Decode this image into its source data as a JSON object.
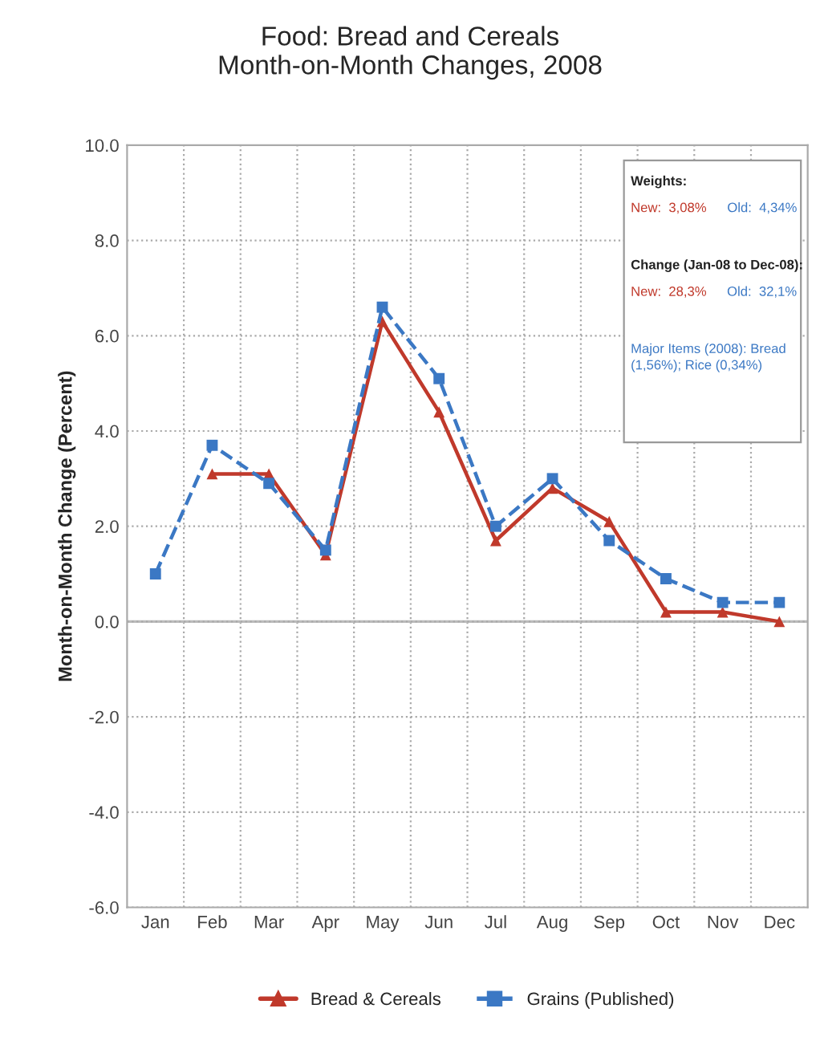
{
  "chart_data": {
    "type": "line",
    "title": "Food: Bread and Cereals\nMonth-on-Month Changes, 2008",
    "ylabel": "Month-on-Month Change (Percent)",
    "categories": [
      "Jan",
      "Feb",
      "Mar",
      "Apr",
      "May",
      "Jun",
      "Jul",
      "Aug",
      "Sep",
      "Oct",
      "Nov",
      "Dec"
    ],
    "series": [
      {
        "name": "Bread & Cereals",
        "color": "#c0392b",
        "marker": "triangle",
        "line_style": "solid",
        "values": [
          null,
          3.1,
          3.1,
          1.4,
          6.3,
          4.4,
          1.7,
          2.8,
          2.1,
          0.2,
          0.2,
          0.0
        ]
      },
      {
        "name": "Grains (Published)",
        "color": "#3b78c4",
        "marker": "square",
        "line_style": "dashed",
        "values": [
          1.0,
          3.7,
          2.9,
          1.5,
          6.6,
          5.1,
          2.0,
          3.0,
          1.7,
          0.9,
          0.4,
          0.4
        ]
      }
    ],
    "ylim": [
      -6,
      10
    ],
    "yticks": [
      {
        "value": -6,
        "label": "-6.0"
      },
      {
        "value": -4,
        "label": "-4.0"
      },
      {
        "value": -2,
        "label": "-2.0"
      },
      {
        "value": 0,
        "label": "0.0"
      },
      {
        "value": 2,
        "label": "2.0"
      },
      {
        "value": 4,
        "label": "4.0"
      },
      {
        "value": 6,
        "label": "6.0"
      },
      {
        "value": 8,
        "label": "8.0"
      },
      {
        "value": 10,
        "label": "10.0"
      }
    ],
    "grid": true,
    "legend": "bottom",
    "annotations": [
      "Weights:",
      "New:  3,08%",
      "Old:  4,34%",
      "Change (Jan-08 to Dec-08):",
      "New:  28,3%",
      "Old:  32,1%",
      "Major Items (2008): Bread\n(1,56%); Rice (0,34%)"
    ]
  }
}
